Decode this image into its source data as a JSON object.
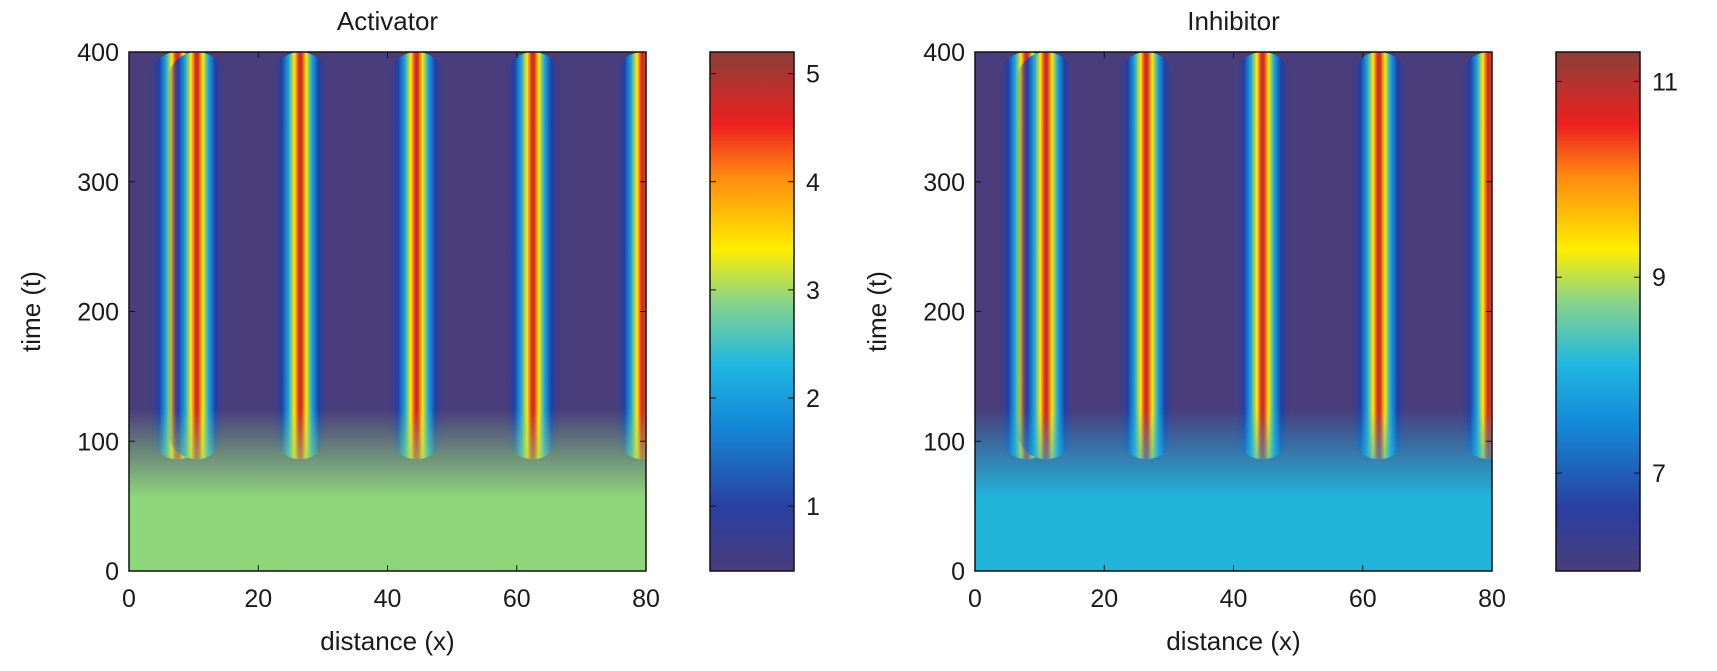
{
  "chart_data": [
    {
      "type": "heatmap",
      "title": "Activator",
      "xlabel": "distance (x)",
      "ylabel": "time (t)",
      "xlim": [
        0,
        80
      ],
      "ylim": [
        0,
        400
      ],
      "xticks": [
        0,
        20,
        40,
        60,
        80
      ],
      "yticks": [
        0,
        100,
        200,
        300,
        400
      ],
      "stripe_centers_x": [
        7.5,
        10.5,
        26.5,
        44.5,
        62.5,
        79.5
      ],
      "onset_t": 100,
      "steady_value": 2.8,
      "colorbar": {
        "min": 0.4,
        "max": 5.2,
        "ticks": [
          1,
          2,
          3,
          4,
          5
        ]
      }
    },
    {
      "type": "heatmap",
      "title": "Inhibitor",
      "xlabel": "distance (x)",
      "ylabel": "time (t)",
      "xlim": [
        0,
        80
      ],
      "ylim": [
        0,
        400
      ],
      "xticks": [
        0,
        20,
        40,
        60,
        80
      ],
      "yticks": [
        0,
        100,
        200,
        300,
        400
      ],
      "stripe_centers_x": [
        8,
        11,
        26.5,
        44.5,
        62.5,
        79.5
      ],
      "onset_t": 100,
      "steady_value": 7.9,
      "colorbar": {
        "min": 6.0,
        "max": 11.3,
        "ticks": [
          7,
          9,
          11
        ]
      }
    }
  ]
}
